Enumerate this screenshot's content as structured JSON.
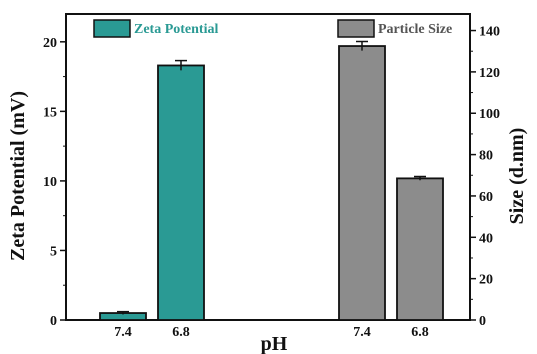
{
  "chart_data": {
    "type": "bar",
    "xlabel": "pH",
    "ylabel_left": "Zeta Potential (mV)",
    "ylabel_right": "Size (d.nm)",
    "ylim_left": [
      0,
      22
    ],
    "ylim_right": [
      0,
      148
    ],
    "yticks_left": [
      "0",
      "5",
      "10",
      "15",
      "20"
    ],
    "yticks_right": [
      "0",
      "20",
      "40",
      "60",
      "80",
      "100",
      "120",
      "140"
    ],
    "legend_placement": "top",
    "series": [
      {
        "name": "Zeta Potential",
        "axis": "left",
        "color": "#2a9a94",
        "categories": [
          "7.4",
          "6.8"
        ],
        "values": [
          0.5,
          18.3
        ],
        "errors": [
          0.1,
          0.35
        ]
      },
      {
        "name": "Particle Size",
        "axis": "right",
        "color": "#8c8c8c",
        "categories": [
          "7.4",
          "6.8"
        ],
        "values": [
          132.5,
          68.5
        ],
        "errors": [
          2.2,
          0.9
        ]
      }
    ]
  }
}
